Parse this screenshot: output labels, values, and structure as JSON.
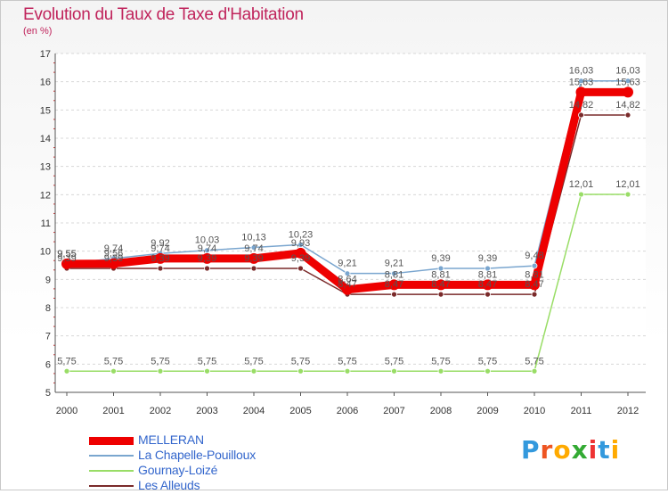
{
  "chart_data": {
    "type": "line",
    "title": "Evolution du Taux de Taxe d'Habitation",
    "subtitle": "(en %)",
    "x": [
      "2000",
      "2001",
      "2002",
      "2003",
      "2004",
      "2005",
      "2006",
      "2007",
      "2008",
      "2009",
      "2010",
      "2011",
      "2012"
    ],
    "y_ticks": [
      "5",
      "6",
      "7",
      "8",
      "9",
      "10",
      "11",
      "12",
      "13",
      "14",
      "15",
      "16",
      "17"
    ],
    "ylim": [
      5,
      17
    ],
    "grid": "horizontal-dashed",
    "legend_position": "bottom-left",
    "series": [
      {
        "name": "MELLERAN",
        "color": "#ee0000",
        "values": [
          9.55,
          9.56,
          9.74,
          9.74,
          9.74,
          9.93,
          8.64,
          8.81,
          8.81,
          8.81,
          8.81,
          15.63,
          15.63
        ],
        "labels": [
          "9,55",
          "9,56",
          "9,74",
          "9,74",
          "9,74",
          "9,93",
          "8,64",
          "8,81",
          "8,81",
          "8,81",
          "8,81",
          "15,63",
          "15,63"
        ]
      },
      {
        "name": "La Chapelle-Pouilloux",
        "color": "#7aa6cf",
        "values": [
          9.55,
          9.74,
          9.92,
          10.03,
          10.13,
          10.23,
          9.21,
          9.21,
          9.39,
          9.39,
          9.48,
          16.03,
          16.03
        ],
        "labels": [
          "9,55",
          "9,74",
          "9,92",
          "10,03",
          "10,13",
          "10,23",
          "9,21",
          "9,21",
          "9,39",
          "9,39",
          "9,48",
          "16,03",
          "16,03"
        ]
      },
      {
        "name": "Gournay-Loizé",
        "color": "#99dd66",
        "values": [
          5.75,
          5.75,
          5.75,
          5.75,
          5.75,
          5.75,
          5.75,
          5.75,
          5.75,
          5.75,
          5.75,
          12.01,
          12.01
        ],
        "labels": [
          "5,75",
          "5,75",
          "5,75",
          "5,75",
          "5,75",
          "5,75",
          "5,75",
          "5,75",
          "5,75",
          "5,75",
          "5,75",
          "12,01",
          "12,01"
        ]
      },
      {
        "name": "Les Alleuds",
        "color": "#7a2a2a",
        "values": [
          9.39,
          9.39,
          9.39,
          9.39,
          9.39,
          9.39,
          8.47,
          8.47,
          8.47,
          8.47,
          8.47,
          14.82,
          14.82
        ],
        "labels": [
          "9,39",
          "9,39",
          "9,39",
          "9,39",
          "9,39",
          "9,39",
          "8,47",
          "8,47",
          "8,47",
          "8,47",
          "8,47",
          "14,82",
          "14,82"
        ]
      }
    ]
  },
  "brand": {
    "text": "Proxiti"
  }
}
